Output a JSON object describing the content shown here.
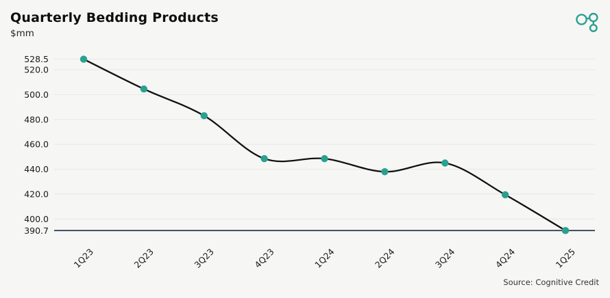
{
  "header": {
    "title": "Quarterly Bedding Products",
    "subtitle": "$mm"
  },
  "logo": {
    "name": "cognitive-credit-logo",
    "color": "#2aa08f"
  },
  "source": {
    "label": "Source: Cognitive Credit"
  },
  "colors": {
    "background": "#f6f6f5",
    "series_line": "#111111",
    "marker": "#2aa08f",
    "gridline": "#e7e7e7",
    "min_line": "#12293f",
    "axis_text": "#1a1a1a"
  },
  "chart_data": {
    "type": "line",
    "title": "Quarterly Bedding Products",
    "ylabel": "$mm",
    "xlabel": "",
    "grid": true,
    "legend": "none",
    "categories": [
      "1Q23",
      "2Q23",
      "3Q23",
      "4Q23",
      "1Q24",
      "2Q24",
      "3Q24",
      "4Q24",
      "1Q25"
    ],
    "values": [
      528.5,
      504.5,
      483.0,
      448.5,
      448.5,
      438.0,
      445.0,
      419.5,
      390.7
    ],
    "y_tick_labels": [
      "528.5",
      "520.0",
      "500.0",
      "480.0",
      "460.0",
      "440.0",
      "420.0",
      "400.0",
      "390.7"
    ],
    "y_tick_values": [
      528.5,
      520.0,
      500.0,
      480.0,
      460.0,
      440.0,
      420.0,
      400.0,
      390.7
    ],
    "ylim": [
      385,
      535
    ],
    "min_line_value": 390.7,
    "max_label": "528.5",
    "min_label": "390.7"
  }
}
